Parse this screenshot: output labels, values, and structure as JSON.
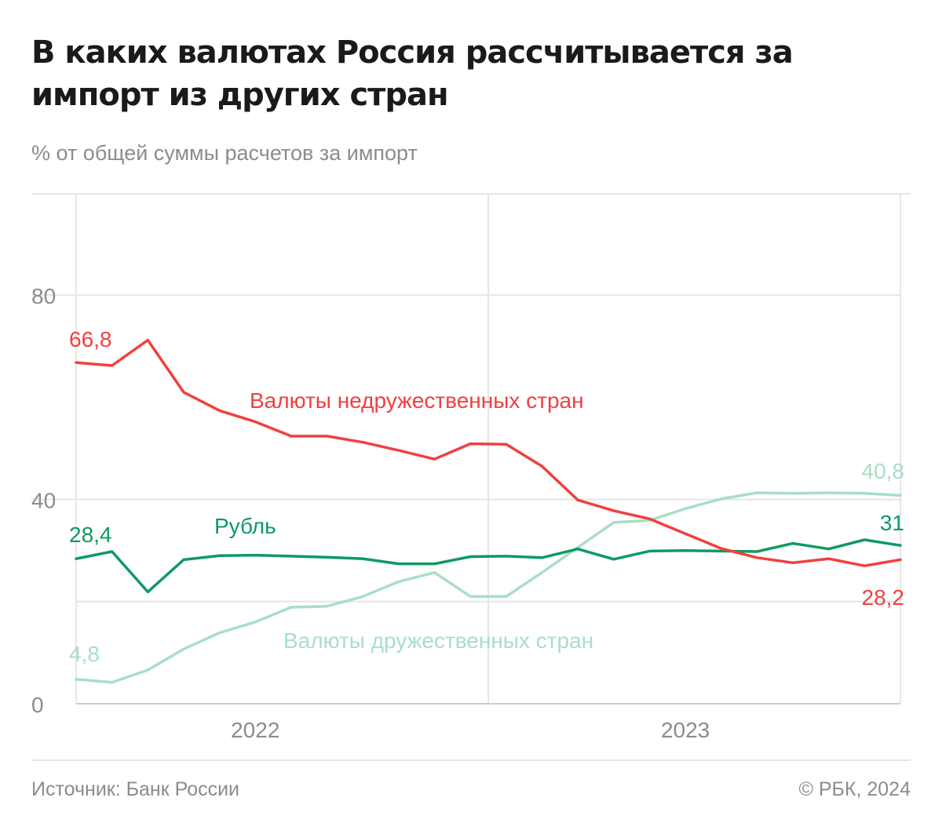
{
  "title": "В каких валютах Россия рассчитывается за импорт из других стран",
  "subtitle": "% от общей суммы расчетов за импорт",
  "source": "Источник: Банк России",
  "copyright": "© РБК, 2024",
  "colors": {
    "unfriendly": "#f0403f",
    "ruble": "#0f9a62",
    "friendly": "#a8dfc6",
    "axis": "#8c8c8c",
    "grid": "#e6e6e6"
  },
  "chart_data": {
    "type": "line",
    "title": "В каких валютах Россия рассчитывается за импорт из других стран",
    "subtitle": "% от общей суммы расчетов за импорт",
    "x": [
      "2022-01",
      "2022-02",
      "2022-03",
      "2022-04",
      "2022-05",
      "2022-06",
      "2022-07",
      "2022-08",
      "2022-09",
      "2022-10",
      "2022-11",
      "2022-12",
      "2023-01",
      "2023-02",
      "2023-03",
      "2023-04",
      "2023-05",
      "2023-06",
      "2023-07",
      "2023-08",
      "2023-09",
      "2023-10",
      "2023-11",
      "2023-12"
    ],
    "x_tick_labels": [
      {
        "x": "2022-06",
        "label": "2022"
      },
      {
        "x": "2023-06",
        "label": "2023"
      }
    ],
    "ylim": [
      0,
      100
    ],
    "y_ticks": [
      0,
      40,
      80
    ],
    "grid": true,
    "series": [
      {
        "name": "Валюты недружественных стран",
        "color_key": "unfriendly",
        "values": [
          66.8,
          66.2,
          71.2,
          61.0,
          57.4,
          55.2,
          52.4,
          52.4,
          51.2,
          49.6,
          47.9,
          50.9,
          50.8,
          46.5,
          39.9,
          37.8,
          36.2,
          33.3,
          30.4,
          28.6,
          27.6,
          28.4,
          27.0,
          28.2
        ],
        "start_label": "66,8",
        "end_label": "28,2"
      },
      {
        "name": "Рубль",
        "color_key": "ruble",
        "values": [
          28.4,
          29.8,
          21.9,
          28.2,
          29.0,
          29.1,
          28.9,
          28.7,
          28.4,
          27.4,
          27.4,
          28.8,
          28.9,
          28.6,
          30.3,
          28.3,
          29.9,
          30.0,
          29.9,
          29.8,
          31.4,
          30.3,
          32.1,
          31.0
        ],
        "start_label": "28,4",
        "end_label": "31"
      },
      {
        "name": "Валюты дружественных стран",
        "color_key": "friendly",
        "values": [
          4.8,
          4.2,
          6.6,
          10.7,
          13.9,
          16.0,
          18.9,
          19.1,
          21.0,
          23.9,
          25.7,
          21.0,
          21.0,
          25.7,
          30.6,
          35.5,
          35.9,
          38.2,
          40.1,
          41.3,
          41.2,
          41.3,
          41.2,
          40.8
        ],
        "start_label": "4,8",
        "end_label": "40,8"
      }
    ],
    "series_labels": [
      "Валюты недружественных стран",
      "Рубль",
      "Валюты дружественных стран"
    ]
  }
}
